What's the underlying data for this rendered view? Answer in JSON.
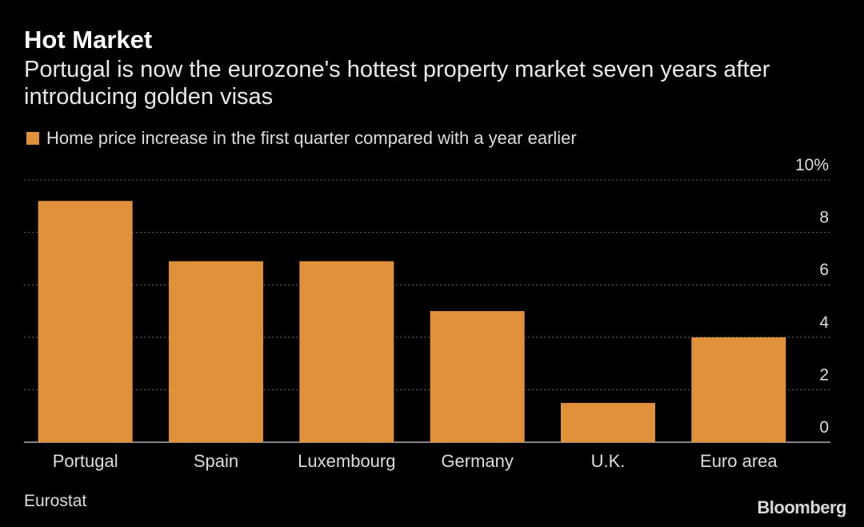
{
  "title": "Hot Market",
  "subtitle": "Portugal is now the eurozone's hottest property market seven years after introducing golden visas",
  "source": "Eurostat",
  "brand": "Bloomberg",
  "colors": {
    "bar": "#e0913a",
    "background": "#000000",
    "grid": "#6a6a6a",
    "text": "#dcdcdc"
  },
  "chart_data": {
    "type": "bar",
    "categories": [
      "Portugal",
      "Spain",
      "Luxembourg",
      "Germany",
      "U.K.",
      "Euro area"
    ],
    "series": [
      {
        "name": "Home price increase in the first quarter compared with a year earlier",
        "values": [
          9.2,
          6.9,
          6.9,
          5.0,
          1.5,
          4.0
        ]
      }
    ],
    "y_ticks": [
      "0",
      "2",
      "4",
      "6",
      "8",
      "10%"
    ],
    "ylim": [
      0,
      10
    ],
    "y_axis_position": "right",
    "grid": true,
    "legend_position": "top-left"
  }
}
